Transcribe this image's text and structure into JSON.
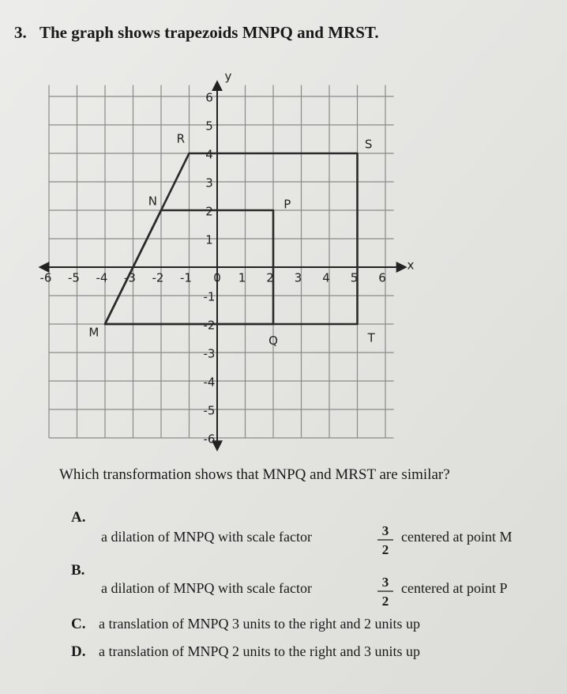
{
  "question_number": "3.",
  "stem": "The graph shows trapezoids MNPQ and MRST.",
  "graph": {
    "x_axis_label": "x",
    "y_axis_label": "y",
    "x_tick_labels": [
      "-6",
      "-5",
      "-4",
      "-3",
      "-2",
      "-1",
      "0",
      "1",
      "2",
      "3",
      "4",
      "5",
      "6"
    ],
    "y_tick_labels": [
      "6",
      "5",
      "4",
      "3",
      "2",
      "1",
      "-1",
      "-2",
      "-3",
      "-4",
      "-5",
      "-6"
    ],
    "point_labels": [
      "M",
      "N",
      "P",
      "Q",
      "R",
      "S",
      "T"
    ]
  },
  "prompt": "Which transformation shows that MNPQ and MRST are similar?",
  "choices": [
    {
      "letter": "A.",
      "text": "a dilation of MNPQ with scale factor",
      "numerator": "3",
      "denominator": "2",
      "text_after": "centered at point M"
    },
    {
      "letter": "B.",
      "text": "a dilation of MNPQ with scale factor",
      "numerator": "3",
      "denominator": "2",
      "text_after": "centered at point P"
    },
    {
      "letter": "C.",
      "text": "a translation of MNPQ 3 units to the right and 2 units up"
    },
    {
      "letter": "D.",
      "text": "a translation of MNPQ 2 units to the right and 3 units up"
    }
  ]
}
